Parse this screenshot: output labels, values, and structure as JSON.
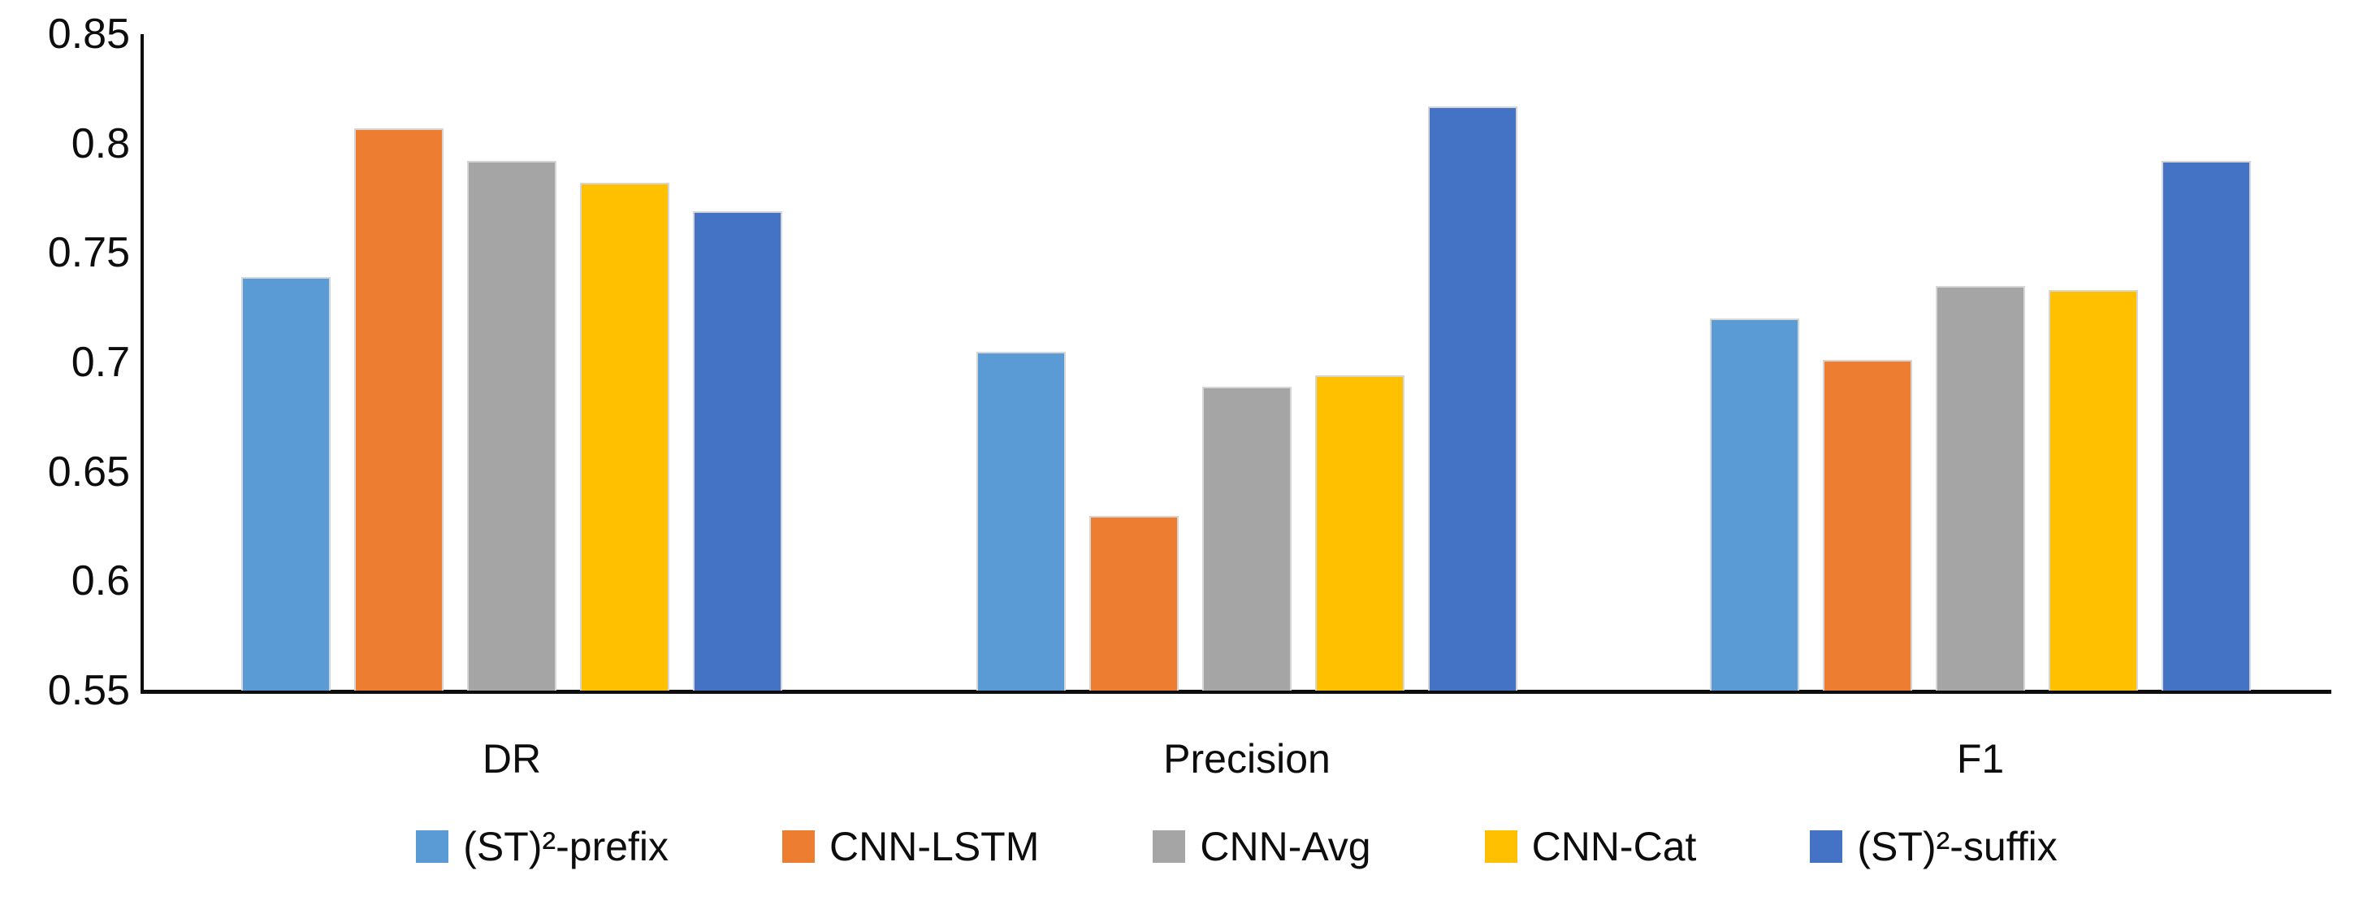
{
  "chart_data": {
    "type": "bar",
    "title": "",
    "xlabel": "",
    "ylabel": "",
    "categories": [
      "DR",
      "Precision",
      "F1"
    ],
    "series": [
      {
        "name": "(ST)²-prefix",
        "color": "#5B9BD5",
        "values": [
          0.739,
          0.705,
          0.72
        ]
      },
      {
        "name": "CNN-LSTM",
        "color": "#ED7D31",
        "values": [
          0.807,
          0.63,
          0.701
        ]
      },
      {
        "name": "CNN-Avg",
        "color": "#A5A5A5",
        "values": [
          0.792,
          0.689,
          0.735
        ]
      },
      {
        "name": "CNN-Cat",
        "color": "#FFC000",
        "values": [
          0.782,
          0.694,
          0.733
        ]
      },
      {
        "name": "(ST)²-suffix",
        "color": "#4472C4",
        "values": [
          0.769,
          0.817,
          0.792
        ]
      }
    ],
    "ylim": [
      0.55,
      0.85
    ],
    "y_tick_labels": [
      "0.85",
      "0.8",
      "0.75",
      "0.7",
      "0.65",
      "0.6",
      "0.55"
    ],
    "grid": false,
    "legend_position": "bottom",
    "axis_color": "#0d0d0d",
    "background_color": "#ffffff"
  }
}
